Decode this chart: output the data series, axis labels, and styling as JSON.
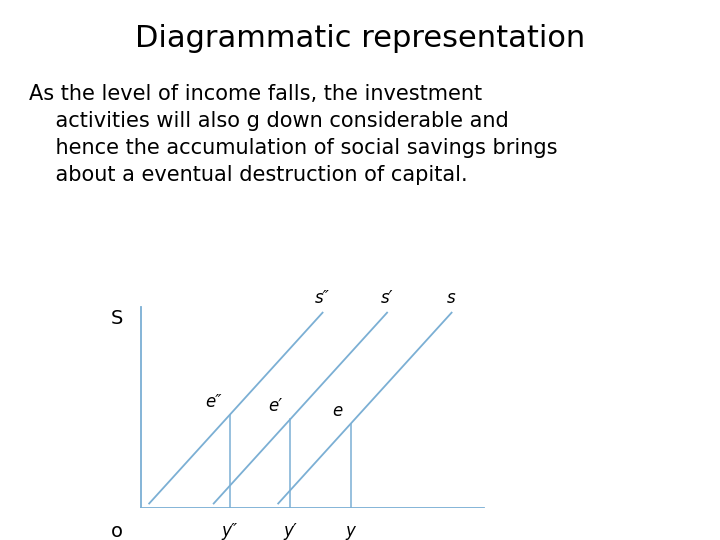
{
  "title": "Diagrammatic representation",
  "para_line1": "As the level of income falls, the investment",
  "para_line2": "    activities will also g down considerable and",
  "para_line3": "    hence the accumulation of social savings brings",
  "para_line4": "    about a eventual destruction of capital.",
  "bg_color": "#ffffff",
  "title_fontsize": 22,
  "para_fontsize": 15,
  "line_color": "#7bafd4",
  "text_color": "#000000",
  "s_label": "S",
  "o_label": "o",
  "x_labels": [
    "y″",
    "y′",
    "y"
  ],
  "curve_labels": [
    "s″",
    "s′",
    "s"
  ],
  "e_labels": [
    "e″",
    "e′",
    "e"
  ],
  "line_params": [
    [
      0.12,
      0.02,
      0.55,
      0.95
    ],
    [
      0.28,
      0.02,
      0.71,
      0.95
    ],
    [
      0.44,
      0.02,
      0.87,
      0.95
    ]
  ],
  "x_vlines": [
    0.32,
    0.47,
    0.62
  ]
}
